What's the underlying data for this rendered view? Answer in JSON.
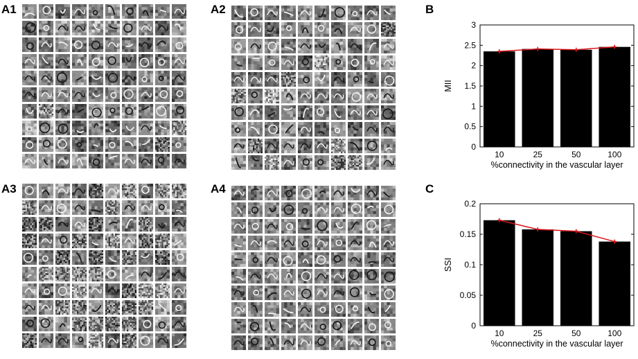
{
  "panels": [
    {
      "label": "A1",
      "tone": 0
    },
    {
      "label": "A2",
      "tone": 1
    },
    {
      "label": "A3",
      "tone": 2
    },
    {
      "label": "A4",
      "tone": 3
    }
  ],
  "grid": {
    "rows": 10,
    "cols": 10
  },
  "chart_data": [
    {
      "panel_label": "B",
      "type": "bar",
      "categories": [
        "10",
        "25",
        "50",
        "100"
      ],
      "values": [
        2.35,
        2.41,
        2.39,
        2.46
      ],
      "overlay_line": [
        2.35,
        2.41,
        2.39,
        2.46
      ],
      "xlabel": "%connectivity in the vascular layer",
      "ylabel": "MII",
      "ylim": [
        0,
        3
      ],
      "yticks": [
        "0",
        "0.5",
        "1",
        "1.5",
        "2",
        "2.5",
        "3"
      ],
      "bar_color": "#000000",
      "line_color": "#d9151a",
      "grid": false
    },
    {
      "panel_label": "C",
      "type": "bar",
      "categories": [
        "10",
        "25",
        "50",
        "100"
      ],
      "values": [
        0.173,
        0.158,
        0.155,
        0.138
      ],
      "overlay_line": [
        0.173,
        0.158,
        0.155,
        0.138
      ],
      "xlabel": "%connectivity in the vascular layer",
      "ylabel": "SSI",
      "ylim": [
        0,
        0.2
      ],
      "yticks": [
        "0",
        "0.05",
        "0.1",
        "0.15",
        "0.2"
      ],
      "bar_color": "#000000",
      "line_color": "#d9151a",
      "grid": false
    }
  ]
}
